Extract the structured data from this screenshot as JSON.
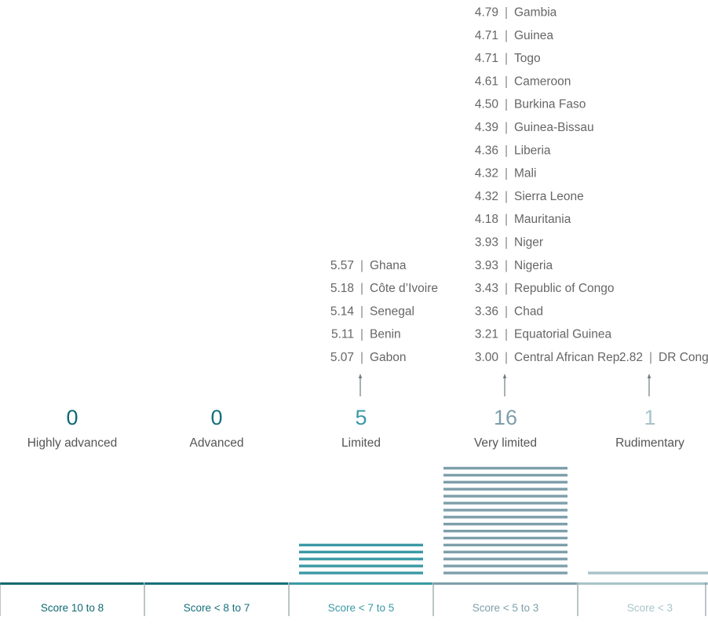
{
  "chart_data": {
    "type": "bar",
    "categories": [
      "Highly advanced",
      "Advanced",
      "Limited",
      "Very limited",
      "Rudimentary"
    ],
    "values": [
      0,
      0,
      5,
      16,
      1
    ],
    "ranges": [
      "Score 10 to 8",
      "Score < 8 to 7",
      "Score < 7 to 5",
      "Score < 5 to 3",
      "Score < 3"
    ],
    "colors": [
      "#0e6a70",
      "#166f7c",
      "#3a99a5",
      "#7e9eab",
      "#a8c3c9"
    ],
    "countries": [
      [],
      [],
      [
        {
          "score": "5.57",
          "name": "Ghana"
        },
        {
          "score": "5.18",
          "name": "Côte d’Ivoire"
        },
        {
          "score": "5.14",
          "name": "Senegal"
        },
        {
          "score": "5.11",
          "name": "Benin"
        },
        {
          "score": "5.07",
          "name": "Gabon"
        }
      ],
      [
        {
          "score": "4.79",
          "name": "Gambia"
        },
        {
          "score": "4.71",
          "name": "Guinea"
        },
        {
          "score": "4.71",
          "name": "Togo"
        },
        {
          "score": "4.61",
          "name": "Cameroon"
        },
        {
          "score": "4.50",
          "name": "Burkina Faso"
        },
        {
          "score": "4.39",
          "name": "Guinea-Bissau"
        },
        {
          "score": "4.36",
          "name": "Liberia"
        },
        {
          "score": "4.32",
          "name": "Mali"
        },
        {
          "score": "4.32",
          "name": "Sierra Leone"
        },
        {
          "score": "4.18",
          "name": "Mauritania"
        },
        {
          "score": "3.93",
          "name": "Niger"
        },
        {
          "score": "3.93",
          "name": "Nigeria"
        },
        {
          "score": "3.43",
          "name": "Republic of Congo"
        },
        {
          "score": "3.36",
          "name": "Chad"
        },
        {
          "score": "3.21",
          "name": "Equatorial Guinea"
        },
        {
          "score": "3.00",
          "name": "Central African Rep."
        }
      ],
      [
        {
          "score": "2.82",
          "name": "DR Congo"
        }
      ]
    ]
  }
}
